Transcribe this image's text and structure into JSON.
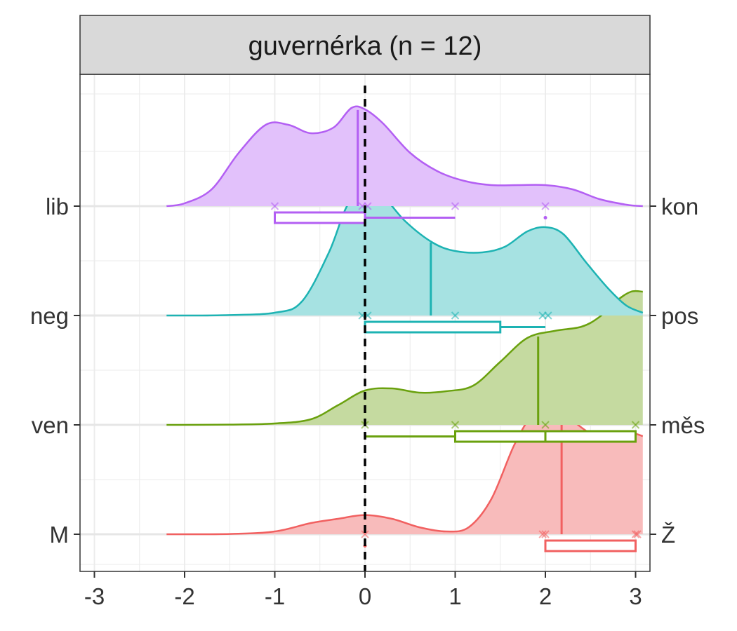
{
  "chart_data": {
    "type": "ridgeline",
    "facet_title": "guvernérka (n = 12)",
    "xlim": [
      -3.15,
      3.15
    ],
    "x_ticks": [
      -3,
      -2,
      -1,
      0,
      1,
      2,
      3
    ],
    "x_tick_labels": [
      "-3",
      "-2",
      "-1",
      "0",
      "1",
      "2",
      "3"
    ],
    "reference_line_x": 0,
    "grid": true,
    "ridges": [
      {
        "left_label": "M",
        "right_label": "Ž",
        "color": "#F16060",
        "fill": "#F8BBBB",
        "density": [
          [
            -2.2,
            0
          ],
          [
            -1.5,
            0.002
          ],
          [
            -1.0,
            0.02
          ],
          [
            -0.6,
            0.08
          ],
          [
            -0.3,
            0.11
          ],
          [
            0,
            0.137
          ],
          [
            0.3,
            0.11
          ],
          [
            0.6,
            0.05
          ],
          [
            0.9,
            0.02
          ],
          [
            1.15,
            0.05
          ],
          [
            1.4,
            0.25
          ],
          [
            1.65,
            0.63
          ],
          [
            1.85,
            0.85
          ],
          [
            2.0,
            0.9
          ],
          [
            2.15,
            0.87
          ],
          [
            2.3,
            0.81
          ],
          [
            2.5,
            0.72
          ],
          [
            2.7,
            0.7
          ],
          [
            2.9,
            0.73
          ],
          [
            3.08,
            0.7
          ]
        ],
        "mean": 2.18,
        "points": [
          0,
          1.97,
          2.0,
          3.0,
          3.02
        ],
        "box": {
          "q1": 2.0,
          "median": 2.0,
          "q3": 3.0,
          "whisker_low": 2.0,
          "whisker_high": 3.0,
          "outliers": [
            0
          ]
        }
      },
      {
        "left_label": "ven",
        "right_label": "měs",
        "color": "#6AA10E",
        "fill": "#C5DAA0",
        "density": [
          [
            -2.2,
            0
          ],
          [
            -1.5,
            0.002
          ],
          [
            -1.0,
            0.01
          ],
          [
            -0.6,
            0.04
          ],
          [
            -0.3,
            0.14
          ],
          [
            0,
            0.245
          ],
          [
            0.3,
            0.26
          ],
          [
            0.6,
            0.23
          ],
          [
            0.9,
            0.24
          ],
          [
            1.2,
            0.28
          ],
          [
            1.5,
            0.45
          ],
          [
            1.8,
            0.62
          ],
          [
            2.1,
            0.67
          ],
          [
            2.4,
            0.7
          ],
          [
            2.6,
            0.77
          ],
          [
            2.8,
            0.89
          ],
          [
            2.95,
            0.95
          ],
          [
            3.08,
            0.95
          ]
        ],
        "mean": 1.92,
        "points": [
          0,
          1.0,
          2.0,
          3.0
        ],
        "box": {
          "q1": 1.0,
          "median": 2.0,
          "q3": 3.0,
          "whisker_low": 0,
          "whisker_high": 3.0,
          "outliers": []
        }
      },
      {
        "left_label": "neg",
        "right_label": "pos",
        "color": "#1DB3B3",
        "fill": "#A6E2E2",
        "density": [
          [
            -2.2,
            0
          ],
          [
            -1.6,
            0.002
          ],
          [
            -1.0,
            0.02
          ],
          [
            -0.7,
            0.1
          ],
          [
            -0.4,
            0.45
          ],
          [
            -0.2,
            0.78
          ],
          [
            0,
            0.91
          ],
          [
            0.2,
            0.85
          ],
          [
            0.45,
            0.67
          ],
          [
            0.75,
            0.52
          ],
          [
            1.0,
            0.46
          ],
          [
            1.3,
            0.45
          ],
          [
            1.55,
            0.49
          ],
          [
            1.8,
            0.6
          ],
          [
            2.0,
            0.63
          ],
          [
            2.2,
            0.58
          ],
          [
            2.45,
            0.38
          ],
          [
            2.7,
            0.19
          ],
          [
            2.9,
            0.07
          ],
          [
            3.08,
            0.02
          ]
        ],
        "mean": 0.73,
        "points": [
          -0.03,
          0.03,
          1.0,
          1.97,
          2.03
        ],
        "box": {
          "q1": 0.0,
          "median": 0.0,
          "q3": 1.5,
          "whisker_low": 0,
          "whisker_high": 2.0,
          "outliers": []
        }
      },
      {
        "left_label": "lib",
        "right_label": "kon",
        "color": "#B35FF3",
        "fill": "#E2C1FB",
        "density": [
          [
            -2.2,
            0
          ],
          [
            -2.0,
            0.02
          ],
          [
            -1.7,
            0.12
          ],
          [
            -1.4,
            0.38
          ],
          [
            -1.1,
            0.58
          ],
          [
            -0.85,
            0.58
          ],
          [
            -0.6,
            0.52
          ],
          [
            -0.35,
            0.56
          ],
          [
            -0.15,
            0.7
          ],
          [
            0,
            0.69
          ],
          [
            0.2,
            0.59
          ],
          [
            0.5,
            0.38
          ],
          [
            0.8,
            0.25
          ],
          [
            1.1,
            0.18
          ],
          [
            1.4,
            0.15
          ],
          [
            1.7,
            0.15
          ],
          [
            2.0,
            0.15
          ],
          [
            2.3,
            0.12
          ],
          [
            2.6,
            0.05
          ],
          [
            2.9,
            0.01
          ],
          [
            3.08,
            0.0
          ]
        ],
        "mean": -0.08,
        "points": [
          -1.0,
          -0.03,
          0.03,
          1.0,
          2.0
        ],
        "box": {
          "q1": -1.0,
          "median": 0.0,
          "q3": 0.0,
          "whisker_low": -1.0,
          "whisker_high": 1.0,
          "outliers": [
            2.0
          ]
        }
      }
    ]
  }
}
